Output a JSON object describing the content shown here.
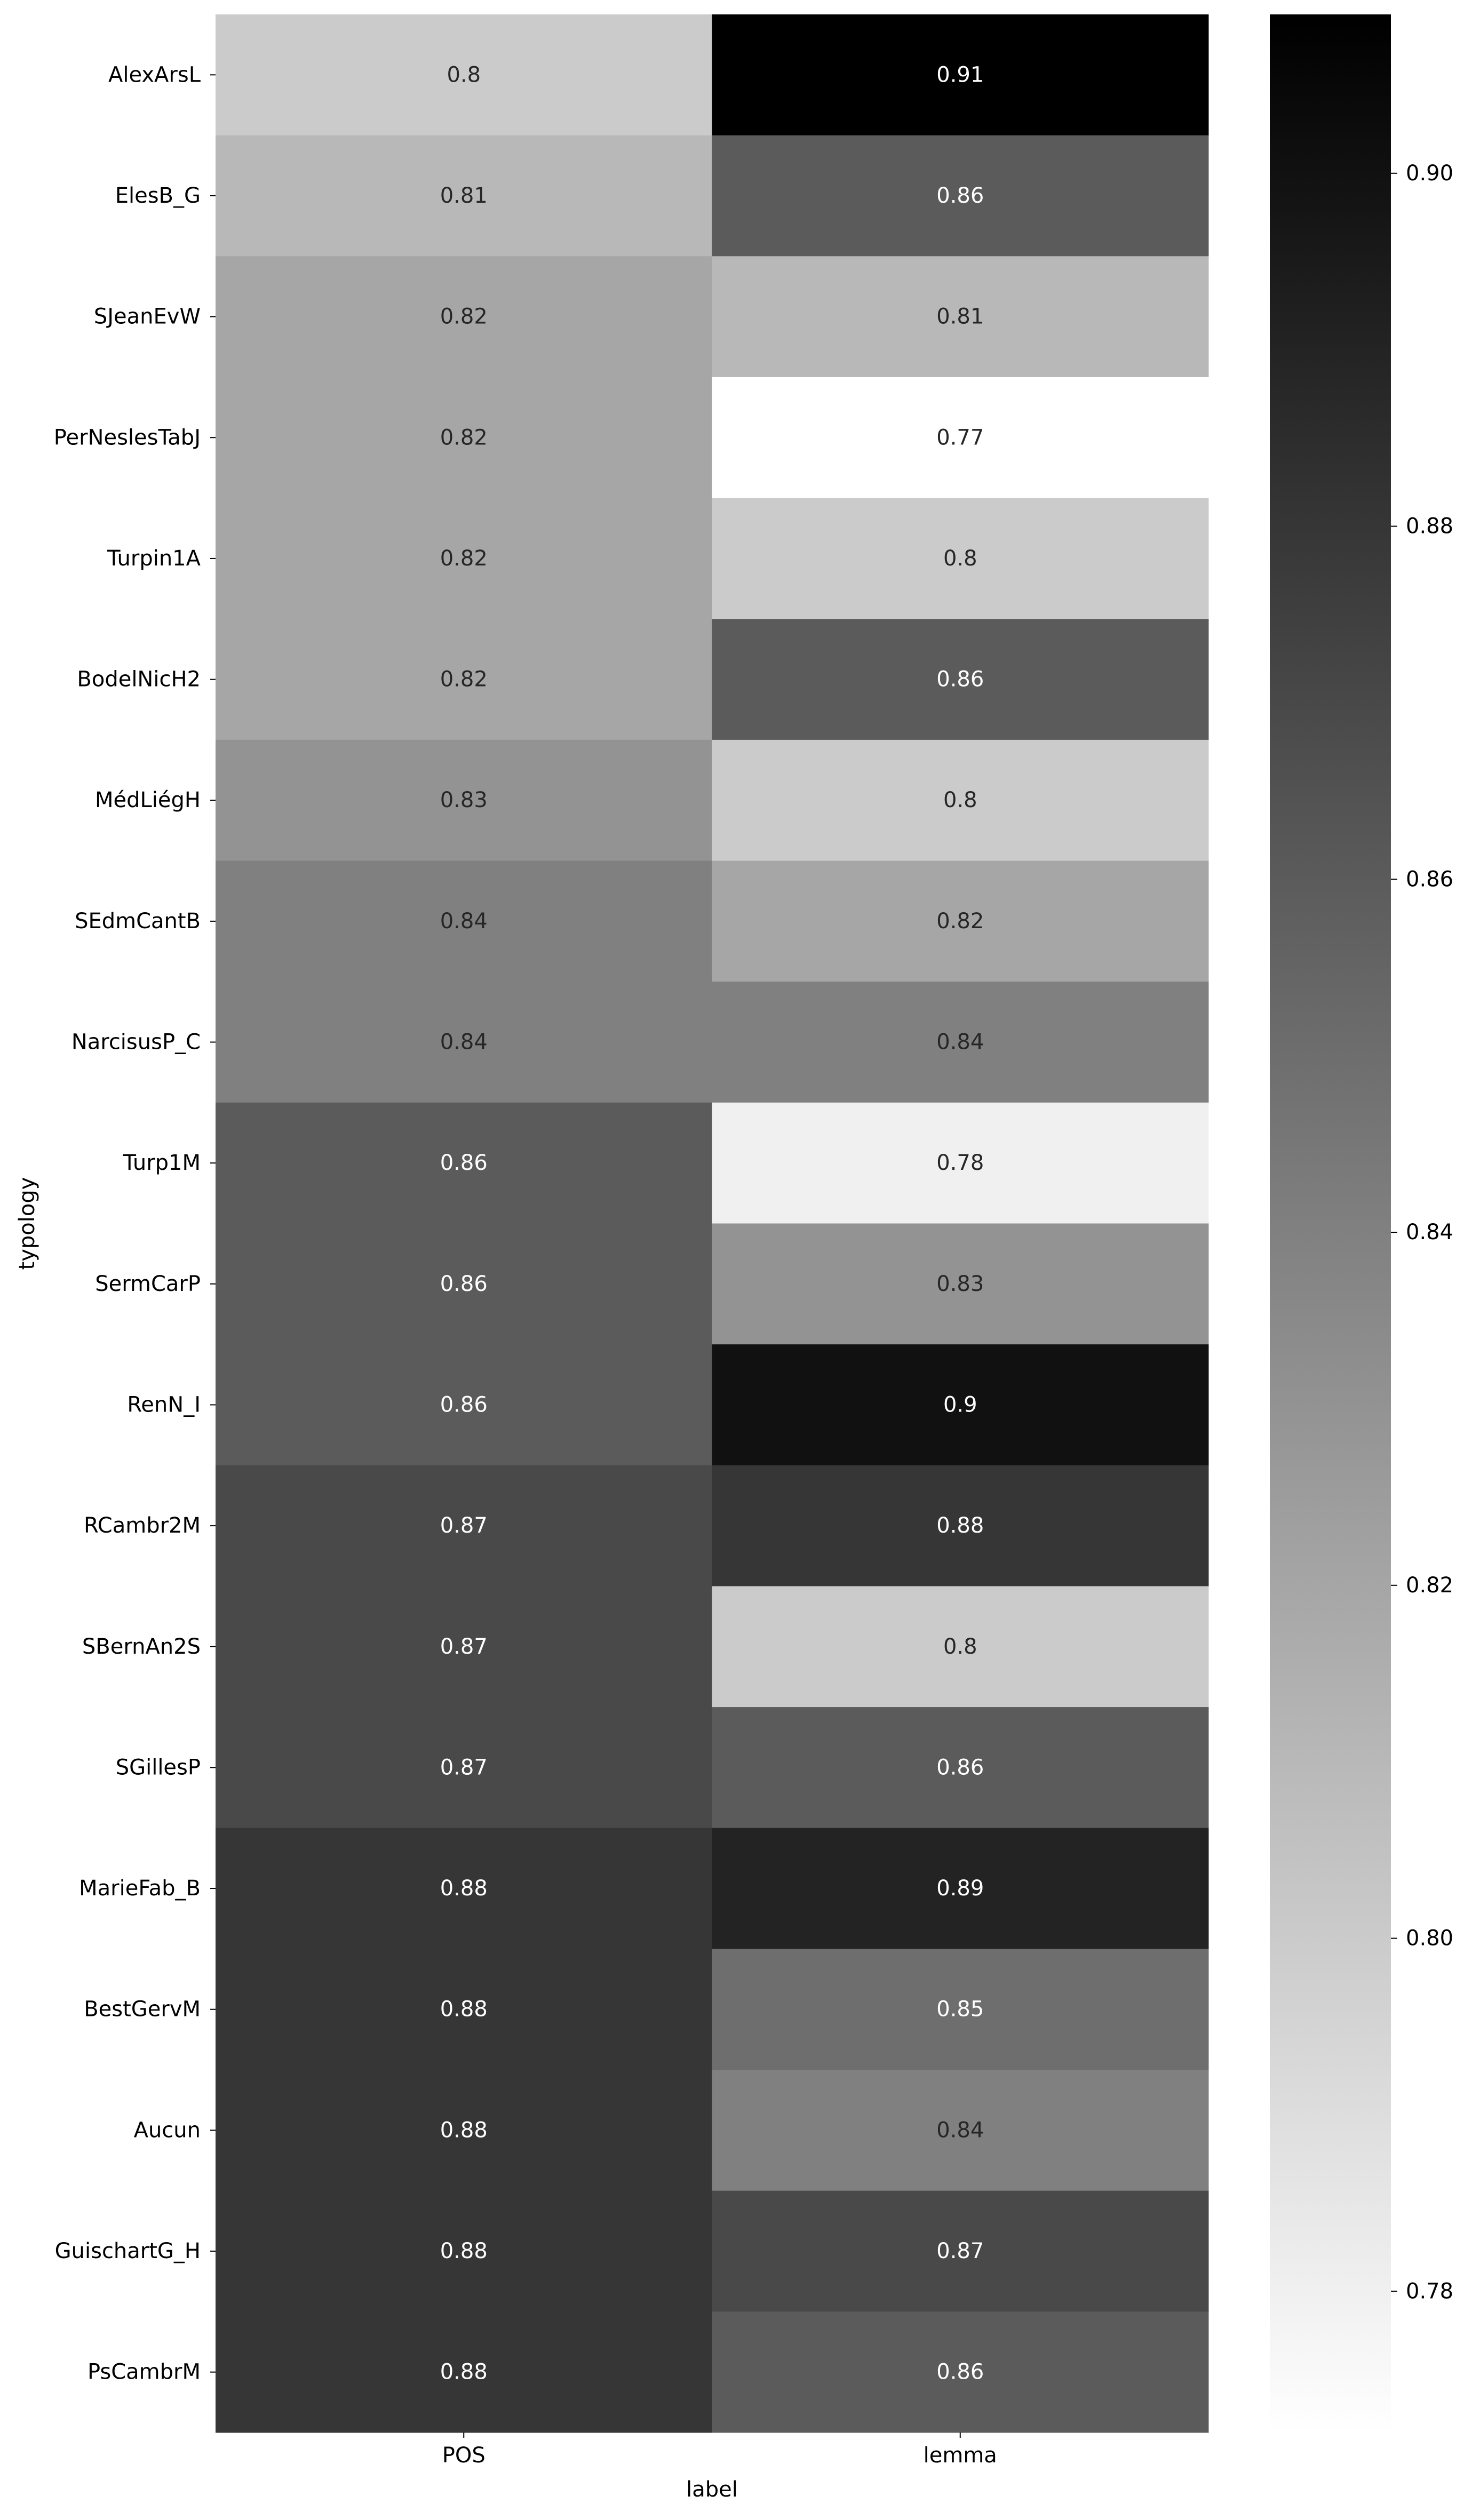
{
  "chart_data": {
    "type": "heatmap",
    "title": "",
    "xlabel": "label",
    "ylabel": "typology",
    "x_categories": [
      "POS",
      "lemma"
    ],
    "y_categories": [
      "AlexArsL",
      "ElesB_G",
      "SJeanEvW",
      "PerNeslesTabJ",
      "Turpin1A",
      "BodelNicH2",
      "MédLiégH",
      "SEdmCantB",
      "NarcisusP_C",
      "Turp1M",
      "SermCarP",
      "RenN_I",
      "RCambr2M",
      "SBernAn2S",
      "SGillesP",
      "MarieFab_B",
      "BestGervM",
      "Aucun",
      "GuischartG_H",
      "PsCambrM"
    ],
    "values": [
      [
        0.8,
        0.91
      ],
      [
        0.81,
        0.86
      ],
      [
        0.82,
        0.81
      ],
      [
        0.82,
        0.77
      ],
      [
        0.82,
        0.8
      ],
      [
        0.82,
        0.86
      ],
      [
        0.83,
        0.8
      ],
      [
        0.84,
        0.82
      ],
      [
        0.84,
        0.84
      ],
      [
        0.86,
        0.78
      ],
      [
        0.86,
        0.83
      ],
      [
        0.86,
        0.9
      ],
      [
        0.87,
        0.88
      ],
      [
        0.87,
        0.8
      ],
      [
        0.87,
        0.86
      ],
      [
        0.88,
        0.89
      ],
      [
        0.88,
        0.85
      ],
      [
        0.88,
        0.84
      ],
      [
        0.88,
        0.87
      ],
      [
        0.88,
        0.86
      ]
    ],
    "colormap": "Greys",
    "colorbar": {
      "range": [
        0.772,
        0.909
      ],
      "ticks": [
        "0.78",
        "0.80",
        "0.82",
        "0.84",
        "0.86",
        "0.88",
        "0.90"
      ]
    },
    "grid": false,
    "legend": "colorbar right"
  }
}
